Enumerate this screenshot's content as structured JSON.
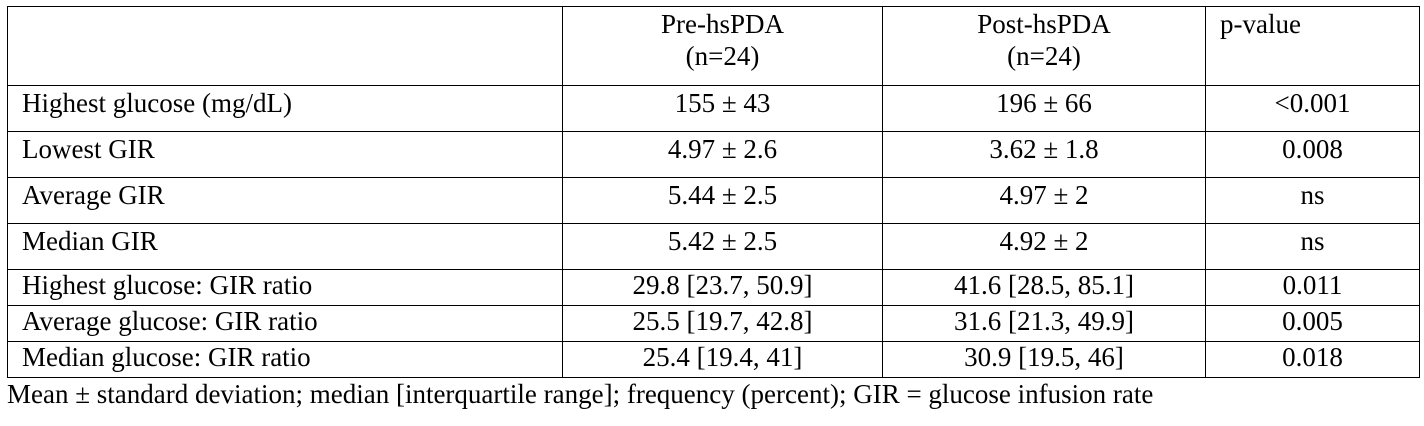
{
  "table": {
    "columns": [
      {
        "line1": "",
        "line2": ""
      },
      {
        "line1": "Pre-hsPDA",
        "line2": "(n=24)"
      },
      {
        "line1": "Post-hsPDA",
        "line2": "(n=24)"
      },
      {
        "line1": "p-value",
        "line2": ""
      }
    ],
    "rows": [
      {
        "label": "Highest glucose (mg/dL)",
        "pre": "155 ± 43",
        "post": "196 ± 66",
        "p": "<0.001"
      },
      {
        "label": "Lowest GIR",
        "pre": "4.97 ± 2.6",
        "post": "3.62 ± 1.8",
        "p": "0.008"
      },
      {
        "label": "Average GIR",
        "pre": "5.44 ± 2.5",
        "post": "4.97 ± 2",
        "p": "ns"
      },
      {
        "label": "Median GIR",
        "pre": "5.42 ± 2.5",
        "post": "4.92 ± 2",
        "p": "ns"
      },
      {
        "label": "Highest glucose: GIR ratio",
        "pre": "29.8 [23.7, 50.9]",
        "post": "41.6 [28.5, 85.1]",
        "p": "0.011"
      },
      {
        "label": "Average glucose: GIR ratio",
        "pre": "25.5 [19.7, 42.8]",
        "post": "31.6 [21.3, 49.9]",
        "p": "0.005"
      },
      {
        "label": "Median glucose: GIR ratio",
        "pre": "25.4 [19.4, 41]",
        "post": "30.9 [19.5, 46]",
        "p": "0.018"
      }
    ]
  },
  "footnote": "Mean ± standard deviation; median [interquartile range]; frequency (percent); GIR = glucose infusion rate"
}
